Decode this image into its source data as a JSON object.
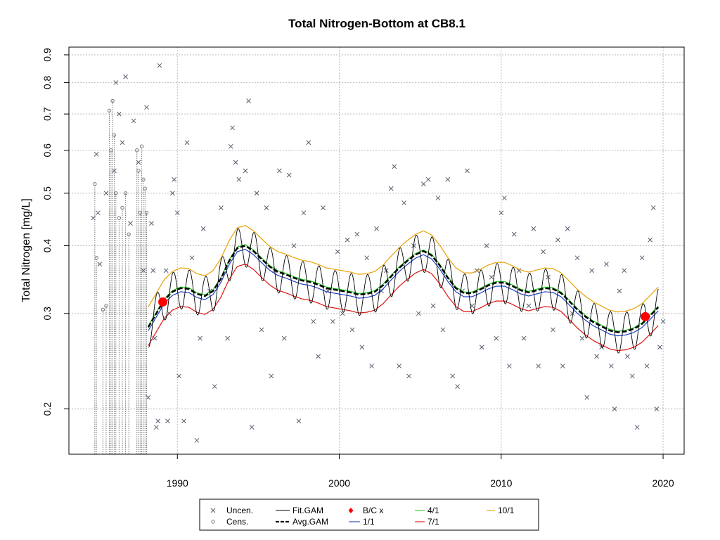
{
  "chart_data": {
    "type": "scatter",
    "title": "Total Nitrogen-Bottom at CB8.1",
    "xlabel": "",
    "ylabel": "Total Nitrogen [mg/L]",
    "y_scale": "log",
    "xlim": [
      1983.3,
      2021.3
    ],
    "ylim": [
      0.165,
      0.93
    ],
    "x_ticks": [
      1990,
      2000,
      2010,
      2020
    ],
    "y_ticks": [
      0.2,
      0.3,
      0.4,
      0.5,
      0.6,
      0.7,
      0.8,
      0.9
    ],
    "grid": true,
    "legend_position": "bottom",
    "colors": {
      "points": "#555e6e",
      "fit": "#000000",
      "avg": "#000000",
      "d1_1": "#1f3fbf",
      "d4_1": "#22cc22",
      "d7_1": "#dd1111",
      "d10_1": "#e8a000",
      "bc": "#ff0000",
      "grid": "#bbbbbb"
    },
    "legend": [
      {
        "label": "Uncen.",
        "kind": "x"
      },
      {
        "label": "Cens.",
        "kind": "circle"
      },
      {
        "label": "Fit.GAM",
        "kind": "line"
      },
      {
        "label": "Avg.GAM",
        "kind": "dash"
      },
      {
        "label": "B/C x",
        "kind": "diamond"
      },
      {
        "label": "1/1",
        "kind": "line-blue"
      },
      {
        "label": "4/1",
        "kind": "line-green"
      },
      {
        "label": "7/1",
        "kind": "line-red"
      },
      {
        "label": "10/1",
        "kind": "line-orange"
      }
    ],
    "bc_points": [
      {
        "x": 1989.1,
        "y": 0.315
      },
      {
        "x": 2018.9,
        "y": 0.296
      }
    ],
    "censored": [
      {
        "x": 1984.9,
        "y": 0.52
      },
      {
        "x": 1985.0,
        "y": 0.38
      },
      {
        "x": 1985.4,
        "y": 0.305
      },
      {
        "x": 1985.6,
        "y": 0.31
      },
      {
        "x": 1985.8,
        "y": 0.71
      },
      {
        "x": 1985.9,
        "y": 0.6
      },
      {
        "x": 1986.0,
        "y": 0.74
      },
      {
        "x": 1986.1,
        "y": 0.64
      },
      {
        "x": 1986.2,
        "y": 0.5
      },
      {
        "x": 1986.4,
        "y": 0.45
      },
      {
        "x": 1986.6,
        "y": 0.47
      },
      {
        "x": 1986.8,
        "y": 0.5
      },
      {
        "x": 1987.0,
        "y": 0.42
      },
      {
        "x": 1987.5,
        "y": 0.6
      },
      {
        "x": 1987.6,
        "y": 0.55
      },
      {
        "x": 1987.7,
        "y": 0.46
      },
      {
        "x": 1987.8,
        "y": 0.61
      },
      {
        "x": 1987.9,
        "y": 0.53
      },
      {
        "x": 1988.0,
        "y": 0.51
      },
      {
        "x": 1988.1,
        "y": 0.46
      }
    ],
    "uncensored": [
      {
        "x": 1984.8,
        "y": 0.45
      },
      {
        "x": 1985.0,
        "y": 0.59
      },
      {
        "x": 1985.1,
        "y": 0.46
      },
      {
        "x": 1985.2,
        "y": 0.37
      },
      {
        "x": 1985.6,
        "y": 0.5
      },
      {
        "x": 1986.1,
        "y": 0.55
      },
      {
        "x": 1986.2,
        "y": 0.8
      },
      {
        "x": 1986.4,
        "y": 0.7
      },
      {
        "x": 1986.6,
        "y": 0.62
      },
      {
        "x": 1986.8,
        "y": 0.82
      },
      {
        "x": 1987.1,
        "y": 0.44
      },
      {
        "x": 1987.3,
        "y": 0.68
      },
      {
        "x": 1987.6,
        "y": 0.57
      },
      {
        "x": 1987.9,
        "y": 0.36
      },
      {
        "x": 1988.1,
        "y": 0.72
      },
      {
        "x": 1988.2,
        "y": 0.21
      },
      {
        "x": 1988.4,
        "y": 0.44
      },
      {
        "x": 1988.5,
        "y": 0.36
      },
      {
        "x": 1988.6,
        "y": 0.27
      },
      {
        "x": 1988.7,
        "y": 0.185
      },
      {
        "x": 1988.8,
        "y": 0.19
      },
      {
        "x": 1988.9,
        "y": 0.86
      },
      {
        "x": 1989.3,
        "y": 0.36
      },
      {
        "x": 1989.4,
        "y": 0.19
      },
      {
        "x": 1989.5,
        "y": 0.3
      },
      {
        "x": 1989.7,
        "y": 0.5
      },
      {
        "x": 1989.8,
        "y": 0.53
      },
      {
        "x": 1990.0,
        "y": 0.46
      },
      {
        "x": 1990.1,
        "y": 0.23
      },
      {
        "x": 1990.4,
        "y": 0.19
      },
      {
        "x": 1990.6,
        "y": 0.62
      },
      {
        "x": 1990.9,
        "y": 0.38
      },
      {
        "x": 1991.2,
        "y": 0.175
      },
      {
        "x": 1991.4,
        "y": 0.27
      },
      {
        "x": 1991.6,
        "y": 0.43
      },
      {
        "x": 1992.0,
        "y": 0.33
      },
      {
        "x": 1992.3,
        "y": 0.22
      },
      {
        "x": 1992.7,
        "y": 0.47
      },
      {
        "x": 1993.1,
        "y": 0.27
      },
      {
        "x": 1993.3,
        "y": 0.61
      },
      {
        "x": 1993.4,
        "y": 0.66
      },
      {
        "x": 1993.6,
        "y": 0.57
      },
      {
        "x": 1993.8,
        "y": 0.53
      },
      {
        "x": 1994.2,
        "y": 0.55
      },
      {
        "x": 1994.4,
        "y": 0.74
      },
      {
        "x": 1994.6,
        "y": 0.185
      },
      {
        "x": 1994.9,
        "y": 0.5
      },
      {
        "x": 1995.2,
        "y": 0.28
      },
      {
        "x": 1995.5,
        "y": 0.47
      },
      {
        "x": 1995.8,
        "y": 0.23
      },
      {
        "x": 1996.0,
        "y": 0.36
      },
      {
        "x": 1996.3,
        "y": 0.55
      },
      {
        "x": 1996.6,
        "y": 0.27
      },
      {
        "x": 1996.9,
        "y": 0.54
      },
      {
        "x": 1997.2,
        "y": 0.4
      },
      {
        "x": 1997.5,
        "y": 0.19
      },
      {
        "x": 1997.8,
        "y": 0.46
      },
      {
        "x": 1998.1,
        "y": 0.62
      },
      {
        "x": 1998.4,
        "y": 0.29
      },
      {
        "x": 1998.7,
        "y": 0.25
      },
      {
        "x": 1999.0,
        "y": 0.47
      },
      {
        "x": 1999.3,
        "y": 0.33
      },
      {
        "x": 1999.6,
        "y": 0.29
      },
      {
        "x": 1999.9,
        "y": 0.39
      },
      {
        "x": 2000.2,
        "y": 0.3
      },
      {
        "x": 2000.5,
        "y": 0.41
      },
      {
        "x": 2000.8,
        "y": 0.28
      },
      {
        "x": 2001.1,
        "y": 0.42
      },
      {
        "x": 2001.4,
        "y": 0.26
      },
      {
        "x": 2001.7,
        "y": 0.38
      },
      {
        "x": 2002.0,
        "y": 0.24
      },
      {
        "x": 2002.3,
        "y": 0.43
      },
      {
        "x": 2002.6,
        "y": 0.33
      },
      {
        "x": 2002.9,
        "y": 0.36
      },
      {
        "x": 2003.2,
        "y": 0.51
      },
      {
        "x": 2003.4,
        "y": 0.56
      },
      {
        "x": 2003.7,
        "y": 0.24
      },
      {
        "x": 2004.0,
        "y": 0.48
      },
      {
        "x": 2004.3,
        "y": 0.23
      },
      {
        "x": 2004.6,
        "y": 0.4
      },
      {
        "x": 2004.9,
        "y": 0.3
      },
      {
        "x": 2005.2,
        "y": 0.52
      },
      {
        "x": 2005.5,
        "y": 0.53
      },
      {
        "x": 2005.8,
        "y": 0.31
      },
      {
        "x": 2006.1,
        "y": 0.49
      },
      {
        "x": 2006.4,
        "y": 0.28
      },
      {
        "x": 2006.7,
        "y": 0.53
      },
      {
        "x": 2007.0,
        "y": 0.23
      },
      {
        "x": 2007.3,
        "y": 0.22
      },
      {
        "x": 2007.6,
        "y": 0.33
      },
      {
        "x": 2007.9,
        "y": 0.55
      },
      {
        "x": 2008.2,
        "y": 0.31
      },
      {
        "x": 2008.5,
        "y": 0.36
      },
      {
        "x": 2008.8,
        "y": 0.26
      },
      {
        "x": 2009.1,
        "y": 0.4
      },
      {
        "x": 2009.4,
        "y": 0.35
      },
      {
        "x": 2009.7,
        "y": 0.27
      },
      {
        "x": 2010.0,
        "y": 0.46
      },
      {
        "x": 2010.2,
        "y": 0.49
      },
      {
        "x": 2010.5,
        "y": 0.24
      },
      {
        "x": 2010.8,
        "y": 0.42
      },
      {
        "x": 2011.1,
        "y": 0.36
      },
      {
        "x": 2011.4,
        "y": 0.27
      },
      {
        "x": 2011.7,
        "y": 0.31
      },
      {
        "x": 2012.0,
        "y": 0.43
      },
      {
        "x": 2012.3,
        "y": 0.24
      },
      {
        "x": 2012.6,
        "y": 0.39
      },
      {
        "x": 2012.9,
        "y": 0.35
      },
      {
        "x": 2013.2,
        "y": 0.28
      },
      {
        "x": 2013.5,
        "y": 0.41
      },
      {
        "x": 2013.8,
        "y": 0.24
      },
      {
        "x": 2014.1,
        "y": 0.43
      },
      {
        "x": 2014.4,
        "y": 0.3
      },
      {
        "x": 2014.7,
        "y": 0.38
      },
      {
        "x": 2015.0,
        "y": 0.27
      },
      {
        "x": 2015.3,
        "y": 0.21
      },
      {
        "x": 2015.6,
        "y": 0.36
      },
      {
        "x": 2015.9,
        "y": 0.25
      },
      {
        "x": 2016.2,
        "y": 0.26
      },
      {
        "x": 2016.5,
        "y": 0.37
      },
      {
        "x": 2016.8,
        "y": 0.24
      },
      {
        "x": 2017.0,
        "y": 0.2
      },
      {
        "x": 2017.3,
        "y": 0.33
      },
      {
        "x": 2017.6,
        "y": 0.36
      },
      {
        "x": 2017.8,
        "y": 0.25
      },
      {
        "x": 2018.1,
        "y": 0.23
      },
      {
        "x": 2018.4,
        "y": 0.185
      },
      {
        "x": 2018.7,
        "y": 0.38
      },
      {
        "x": 2019.0,
        "y": 0.24
      },
      {
        "x": 2019.2,
        "y": 0.41
      },
      {
        "x": 2019.4,
        "y": 0.47
      },
      {
        "x": 2019.6,
        "y": 0.2
      },
      {
        "x": 2019.8,
        "y": 0.26
      },
      {
        "x": 2020.0,
        "y": 0.29
      }
    ],
    "avg_gam": [
      {
        "x": 1988.2,
        "y": 0.283
      },
      {
        "x": 1988.7,
        "y": 0.3
      },
      {
        "x": 1989.2,
        "y": 0.318
      },
      {
        "x": 1989.7,
        "y": 0.329
      },
      {
        "x": 1990.2,
        "y": 0.334
      },
      {
        "x": 1990.7,
        "y": 0.333
      },
      {
        "x": 1991.2,
        "y": 0.326
      },
      {
        "x": 1991.7,
        "y": 0.323
      },
      {
        "x": 1992.2,
        "y": 0.33
      },
      {
        "x": 1992.7,
        "y": 0.348
      },
      {
        "x": 1993.2,
        "y": 0.375
      },
      {
        "x": 1993.7,
        "y": 0.396
      },
      {
        "x": 1994.2,
        "y": 0.4
      },
      {
        "x": 1994.7,
        "y": 0.391
      },
      {
        "x": 1995.2,
        "y": 0.378
      },
      {
        "x": 1995.7,
        "y": 0.366
      },
      {
        "x": 1996.2,
        "y": 0.358
      },
      {
        "x": 1996.7,
        "y": 0.354
      },
      {
        "x": 1997.2,
        "y": 0.349
      },
      {
        "x": 1997.7,
        "y": 0.345
      },
      {
        "x": 1998.2,
        "y": 0.343
      },
      {
        "x": 1998.7,
        "y": 0.339
      },
      {
        "x": 1999.2,
        "y": 0.334
      },
      {
        "x": 1999.7,
        "y": 0.332
      },
      {
        "x": 2000.2,
        "y": 0.33
      },
      {
        "x": 2000.7,
        "y": 0.328
      },
      {
        "x": 2001.2,
        "y": 0.325
      },
      {
        "x": 2001.7,
        "y": 0.326
      },
      {
        "x": 2002.2,
        "y": 0.329
      },
      {
        "x": 2002.7,
        "y": 0.338
      },
      {
        "x": 2003.2,
        "y": 0.351
      },
      {
        "x": 2003.7,
        "y": 0.364
      },
      {
        "x": 2004.2,
        "y": 0.375
      },
      {
        "x": 2004.7,
        "y": 0.385
      },
      {
        "x": 2005.2,
        "y": 0.391
      },
      {
        "x": 2005.7,
        "y": 0.384
      },
      {
        "x": 2006.2,
        "y": 0.368
      },
      {
        "x": 2006.7,
        "y": 0.349
      },
      {
        "x": 2007.2,
        "y": 0.334
      },
      {
        "x": 2007.7,
        "y": 0.327
      },
      {
        "x": 2008.2,
        "y": 0.327
      },
      {
        "x": 2008.7,
        "y": 0.332
      },
      {
        "x": 2009.2,
        "y": 0.338
      },
      {
        "x": 2009.7,
        "y": 0.342
      },
      {
        "x": 2010.2,
        "y": 0.342
      },
      {
        "x": 2010.7,
        "y": 0.337
      },
      {
        "x": 2011.2,
        "y": 0.331
      },
      {
        "x": 2011.7,
        "y": 0.328
      },
      {
        "x": 2012.2,
        "y": 0.331
      },
      {
        "x": 2012.7,
        "y": 0.334
      },
      {
        "x": 2013.2,
        "y": 0.333
      },
      {
        "x": 2013.7,
        "y": 0.327
      },
      {
        "x": 2014.2,
        "y": 0.316
      },
      {
        "x": 2014.7,
        "y": 0.305
      },
      {
        "x": 2015.2,
        "y": 0.296
      },
      {
        "x": 2015.7,
        "y": 0.289
      },
      {
        "x": 2016.2,
        "y": 0.284
      },
      {
        "x": 2016.7,
        "y": 0.279
      },
      {
        "x": 2017.2,
        "y": 0.277
      },
      {
        "x": 2017.7,
        "y": 0.278
      },
      {
        "x": 2018.2,
        "y": 0.281
      },
      {
        "x": 2018.7,
        "y": 0.287
      },
      {
        "x": 2019.2,
        "y": 0.297
      },
      {
        "x": 2019.7,
        "y": 0.308
      }
    ]
  }
}
